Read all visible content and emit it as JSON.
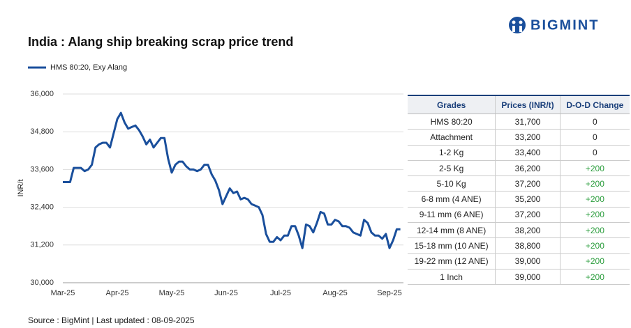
{
  "chart_data": {
    "type": "line",
    "title": "India : Alang ship breaking scrap price trend",
    "y_label": "INR/t",
    "source": "Source : BigMint | Last updated : 08-09-2025",
    "brand": "BIGMINT",
    "categories": [
      "Mar-25",
      null,
      null,
      null,
      null,
      null,
      null,
      null,
      null,
      null,
      null,
      null,
      null,
      null,
      null,
      "Apr-25",
      null,
      null,
      null,
      null,
      null,
      null,
      null,
      null,
      null,
      null,
      null,
      null,
      null,
      null,
      "May-25",
      null,
      null,
      null,
      null,
      null,
      null,
      null,
      null,
      null,
      null,
      null,
      null,
      null,
      null,
      "Jun-25",
      null,
      null,
      null,
      null,
      null,
      null,
      null,
      null,
      null,
      null,
      null,
      null,
      null,
      null,
      "Jul-25",
      null,
      null,
      null,
      null,
      null,
      null,
      null,
      null,
      null,
      null,
      null,
      null,
      null,
      null,
      "Aug-25",
      null,
      null,
      null,
      null,
      null,
      null,
      null,
      null,
      null,
      null,
      null,
      null,
      null,
      null,
      "Sep-25",
      null,
      null,
      null
    ],
    "series": [
      {
        "name": "HMS 80:20, Exy Alang",
        "color": "#1a4f9c",
        "values": [
          33200,
          33200,
          33200,
          33650,
          33650,
          33650,
          33550,
          33600,
          33750,
          34300,
          34400,
          34450,
          34450,
          34300,
          34750,
          35200,
          35400,
          35100,
          34900,
          34950,
          35000,
          34850,
          34650,
          34400,
          34550,
          34300,
          34450,
          34600,
          34600,
          33950,
          33500,
          33750,
          33850,
          33850,
          33700,
          33600,
          33600,
          33550,
          33600,
          33750,
          33750,
          33450,
          33250,
          32950,
          32500,
          32750,
          33000,
          32850,
          32900,
          32650,
          32700,
          32650,
          32500,
          32450,
          32400,
          32150,
          31550,
          31300,
          31300,
          31450,
          31350,
          31500,
          31500,
          31800,
          31800,
          31500,
          31100,
          31850,
          31800,
          31600,
          31900,
          32250,
          32200,
          31850,
          31850,
          32000,
          31950,
          31800,
          31800,
          31750,
          31600,
          31550,
          31500,
          32000,
          31900,
          31600,
          31500,
          31500,
          31400,
          31550,
          31100,
          31350,
          31700,
          31700
        ]
      }
    ],
    "ylim": [
      30000,
      36000
    ],
    "yticks": [
      {
        "value": 30000,
        "label": "30,000"
      },
      {
        "value": 31200,
        "label": "31,200"
      },
      {
        "value": 32400,
        "label": "32,400"
      },
      {
        "value": 33600,
        "label": "33,600"
      },
      {
        "value": 34800,
        "label": "34,800"
      },
      {
        "value": 36000,
        "label": "36,000"
      }
    ],
    "grid": true,
    "legend": "top-left"
  },
  "table": {
    "columns": [
      "Grades",
      "Prices (INR/t)",
      "D-O-D Change"
    ],
    "rows": [
      [
        "HMS 80:20",
        "31,700",
        "0"
      ],
      [
        "Attachment",
        "33,200",
        "0"
      ],
      [
        "1-2 Kg",
        "33,400",
        "0"
      ],
      [
        "2-5 Kg",
        "36,200",
        "+200"
      ],
      [
        "5-10 Kg",
        "37,200",
        "+200"
      ],
      [
        "6-8 mm (4 ANE)",
        "35,200",
        "+200"
      ],
      [
        "9-11 mm (6 ANE)",
        "37,200",
        "+200"
      ],
      [
        "12-14 mm (8 ANE)",
        "38,200",
        "+200"
      ],
      [
        "15-18 mm (10 ANE)",
        "38,800",
        "+200"
      ],
      [
        "19-22 mm (12 ANE)",
        "39,000",
        "+200"
      ],
      [
        "1 Inch",
        "39,000",
        "+200"
      ]
    ]
  }
}
